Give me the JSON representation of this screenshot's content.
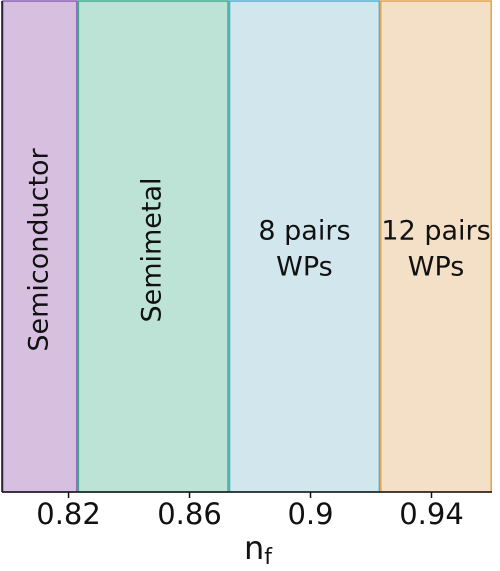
{
  "chart_data": {
    "type": "region",
    "x_label": "n",
    "x_label_sub": "f",
    "xlim": [
      0.798,
      0.96
    ],
    "xticks": [
      0.82,
      0.86,
      0.9,
      0.94
    ],
    "regions": [
      {
        "lines": [
          "Semiconductor"
        ],
        "rotated": true,
        "color": "#d7bfe0",
        "edge": "#8a5fb3",
        "range": [
          0.798,
          0.823
        ]
      },
      {
        "lines": [
          "Semimetal"
        ],
        "rotated": true,
        "color": "#bde3d7",
        "edge": "#3ea88b",
        "range": [
          0.823,
          0.873
        ]
      },
      {
        "lines": [
          "8 pairs",
          "WPs"
        ],
        "rotated": false,
        "color": "#d2e6ee",
        "edge": "#4fb1d6",
        "range": [
          0.873,
          0.923
        ]
      },
      {
        "lines": [
          "12 pairs",
          "WPs"
        ],
        "rotated": false,
        "color": "#f3e0c6",
        "edge": "#e6a24a",
        "range": [
          0.923,
          0.96
        ]
      }
    ]
  }
}
